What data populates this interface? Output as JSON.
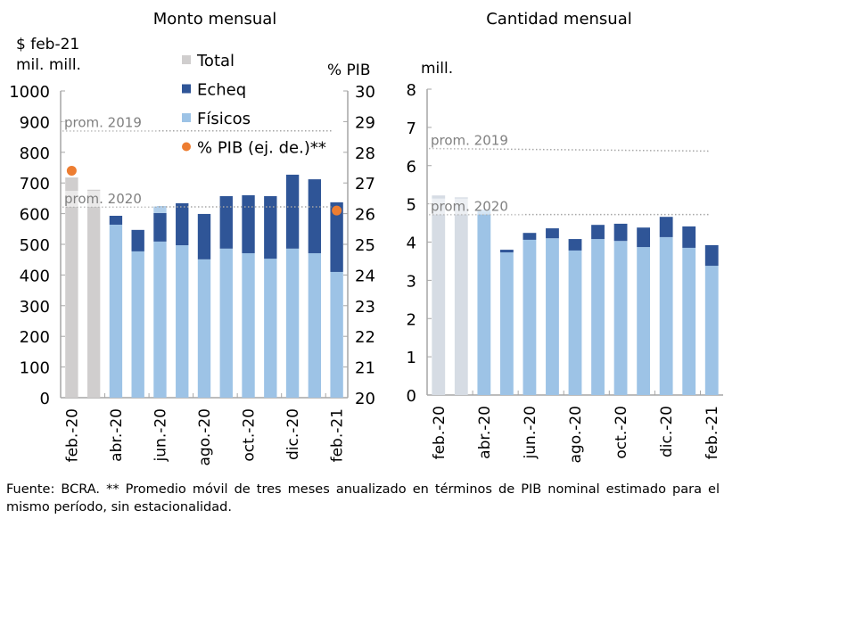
{
  "chart_data": [
    {
      "type": "bar",
      "title": "Monto mensual",
      "ylabel": "$ feb-21\nmil. mill.",
      "ylabel_lines": [
        "$ feb-21",
        "mil. mill."
      ],
      "y2label": "% PIB",
      "ylim": [
        0,
        1000
      ],
      "yticks": [
        0,
        100,
        200,
        300,
        400,
        500,
        600,
        700,
        800,
        900,
        1000
      ],
      "y2lim": [
        20,
        30
      ],
      "y2ticks": [
        20,
        21,
        22,
        23,
        24,
        25,
        26,
        27,
        28,
        29,
        30
      ],
      "categories": [
        "feb.-20",
        "mar.-20",
        "abr.-20",
        "may.-20",
        "jun.-20",
        "jul.-20",
        "ago.-20",
        "sep.-20",
        "oct.-20",
        "nov.-20",
        "dic.-20",
        "ene.-21",
        "feb.-21"
      ],
      "xtick_labels": [
        "feb.-20",
        "abr.-20",
        "jun.-20",
        "ago.-20",
        "oct.-20",
        "dic.-20",
        "feb.-21"
      ],
      "series": [
        {
          "name": "Total",
          "kind": "bar",
          "values": [
            718,
            678,
            null,
            null,
            625,
            null,
            null,
            null,
            null,
            null,
            null,
            null,
            null
          ]
        },
        {
          "name": "Físicos",
          "kind": "stacked-bar",
          "values": [
            null,
            null,
            564,
            477,
            509,
            497,
            451,
            486,
            471,
            453,
            486,
            471,
            410
          ]
        },
        {
          "name": "Echeq",
          "kind": "stacked-bar",
          "values": [
            null,
            null,
            29,
            70,
            93,
            137,
            148,
            171,
            189,
            204,
            241,
            241,
            227
          ]
        },
        {
          "name": "% PIB (ej. de.)**",
          "kind": "scatter",
          "axis": "right",
          "values": [
            27.4,
            null,
            null,
            null,
            null,
            null,
            null,
            null,
            null,
            null,
            null,
            null,
            26.1
          ]
        }
      ],
      "reference_lines": [
        {
          "label": "prom. 2019",
          "value": 870
        },
        {
          "label": "prom. 2020",
          "value": 622
        }
      ],
      "legend": {
        "position": "top-center",
        "items": [
          {
            "label": "Total",
            "marker": "square"
          },
          {
            "label": "Echeq",
            "marker": "square"
          },
          {
            "label": "Físicos",
            "marker": "square"
          },
          {
            "label": "% PIB (ej. de.)**",
            "marker": "circle"
          }
        ]
      },
      "grid": false
    },
    {
      "type": "bar",
      "title": "Cantidad mensual",
      "ylabel": "mill.",
      "ylim": [
        0,
        8
      ],
      "yticks": [
        0,
        1,
        2,
        3,
        4,
        5,
        6,
        7,
        8
      ],
      "categories": [
        "feb.-20",
        "mar.-20",
        "abr.-20",
        "may.-20",
        "jun.-20",
        "jul.-20",
        "ago.-20",
        "sep.-20",
        "oct.-20",
        "nov.-20",
        "dic.-20",
        "ene.-21",
        "feb.-21"
      ],
      "xtick_labels": [
        "feb.-20",
        "abr.-20",
        "jun.-20",
        "ago.-20",
        "oct.-20",
        "dic.-20",
        "feb.-21"
      ],
      "series": [
        {
          "name": "Total",
          "kind": "bar",
          "values": [
            5.22,
            5.17,
            4.85,
            null,
            null,
            null,
            null,
            null,
            null,
            null,
            null,
            null,
            null
          ]
        },
        {
          "name": "Físicos",
          "kind": "stacked-bar",
          "values": [
            null,
            null,
            4.8,
            3.73,
            4.06,
            4.1,
            3.78,
            4.08,
            4.03,
            3.87,
            4.13,
            3.85,
            3.38
          ]
        },
        {
          "name": "Echeq",
          "kind": "stacked-bar",
          "values": [
            null,
            null,
            0.0,
            0.07,
            0.18,
            0.26,
            0.3,
            0.37,
            0.45,
            0.51,
            0.53,
            0.56,
            0.54
          ]
        }
      ],
      "reference_lines": [
        {
          "label": "prom. 2019",
          "value": 6.45
        },
        {
          "label": "prom. 2020",
          "value": 4.72
        }
      ],
      "grid": false
    }
  ],
  "colors": {
    "total": "#d0cece",
    "total_light": "#d6dce4",
    "echeq": "#2f5597",
    "fisicos": "#9dc3e6",
    "pib": "#ed7d31",
    "axis": "#a6a6a6",
    "ref": "#a6a6a6"
  },
  "footnote": "Fuente: BCRA. ** Promedio móvil de tres meses anualizado en términos de PIB nominal estimado para el mismo período, sin estacionalidad."
}
